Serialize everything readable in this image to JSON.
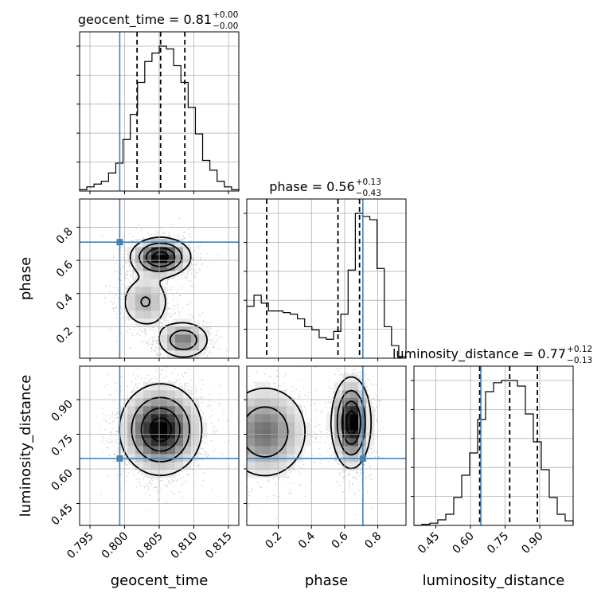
{
  "chart_data": {
    "type": "corner",
    "parameters": [
      {
        "key": "geocent_time",
        "label": "geocent_time",
        "range": [
          0.7935,
          0.8165
        ],
        "ticks": [
          0.795,
          0.8,
          0.805,
          0.81,
          0.815
        ],
        "tick_labels": [
          "0.795",
          "0.800",
          "0.805",
          "0.810",
          "0.815"
        ],
        "true_value": 0.7993,
        "quantiles": [
          0.8018,
          0.8052,
          0.8087
        ]
      },
      {
        "key": "phase",
        "label": "phase",
        "range": [
          0.01,
          0.97
        ],
        "ticks": [
          0.2,
          0.4,
          0.6,
          0.8
        ],
        "tick_labels": [
          "0.2",
          "0.4",
          "0.6",
          "0.8"
        ],
        "true_value": 0.71,
        "quantiles": [
          0.13,
          0.56,
          0.69
        ]
      },
      {
        "key": "luminosity_distance",
        "label": "luminosity_distance",
        "range": [
          0.355,
          1.045
        ],
        "ticks": [
          0.45,
          0.6,
          0.75,
          0.9
        ],
        "tick_labels": [
          "0.45",
          "0.60",
          "0.75",
          "0.90"
        ],
        "true_value": 0.645,
        "quantiles": [
          0.64,
          0.77,
          0.89
        ]
      }
    ],
    "titles": [
      {
        "text": "geocent_time = 0.81",
        "sup": "+0.00",
        "sub": "−0.00"
      },
      {
        "text": "phase = 0.56",
        "sup": "+0.13",
        "sub": "−0.43"
      },
      {
        "text": "luminosity_distance = 0.77",
        "sup": "+0.12",
        "sub": "−0.13"
      }
    ],
    "histograms": [
      {
        "param": "geocent_time",
        "bins": [
          0.7935,
          0.8165
        ],
        "counts": [
          1,
          3,
          5,
          7,
          13,
          20,
          37,
          55,
          78,
          93,
          99,
          104,
          102,
          90,
          78,
          60,
          41,
          22,
          15,
          7,
          3,
          1
        ]
      },
      {
        "param": "phase",
        "bins": [
          0.01,
          0.97
        ],
        "counts": [
          33,
          40,
          35,
          30,
          30,
          29,
          28,
          25,
          20,
          18,
          13,
          12,
          17,
          28,
          56,
          92,
          90,
          88,
          57,
          20,
          8,
          1
        ]
      },
      {
        "param": "luminosity_distance",
        "bins": [
          0.355,
          1.045
        ],
        "counts": [
          0,
          1,
          2,
          5,
          10,
          25,
          45,
          65,
          95,
          120,
          128,
          130,
          130,
          125,
          100,
          75,
          50,
          25,
          10,
          4
        ]
      }
    ],
    "grid": true,
    "truth_color": "#4682b4"
  }
}
